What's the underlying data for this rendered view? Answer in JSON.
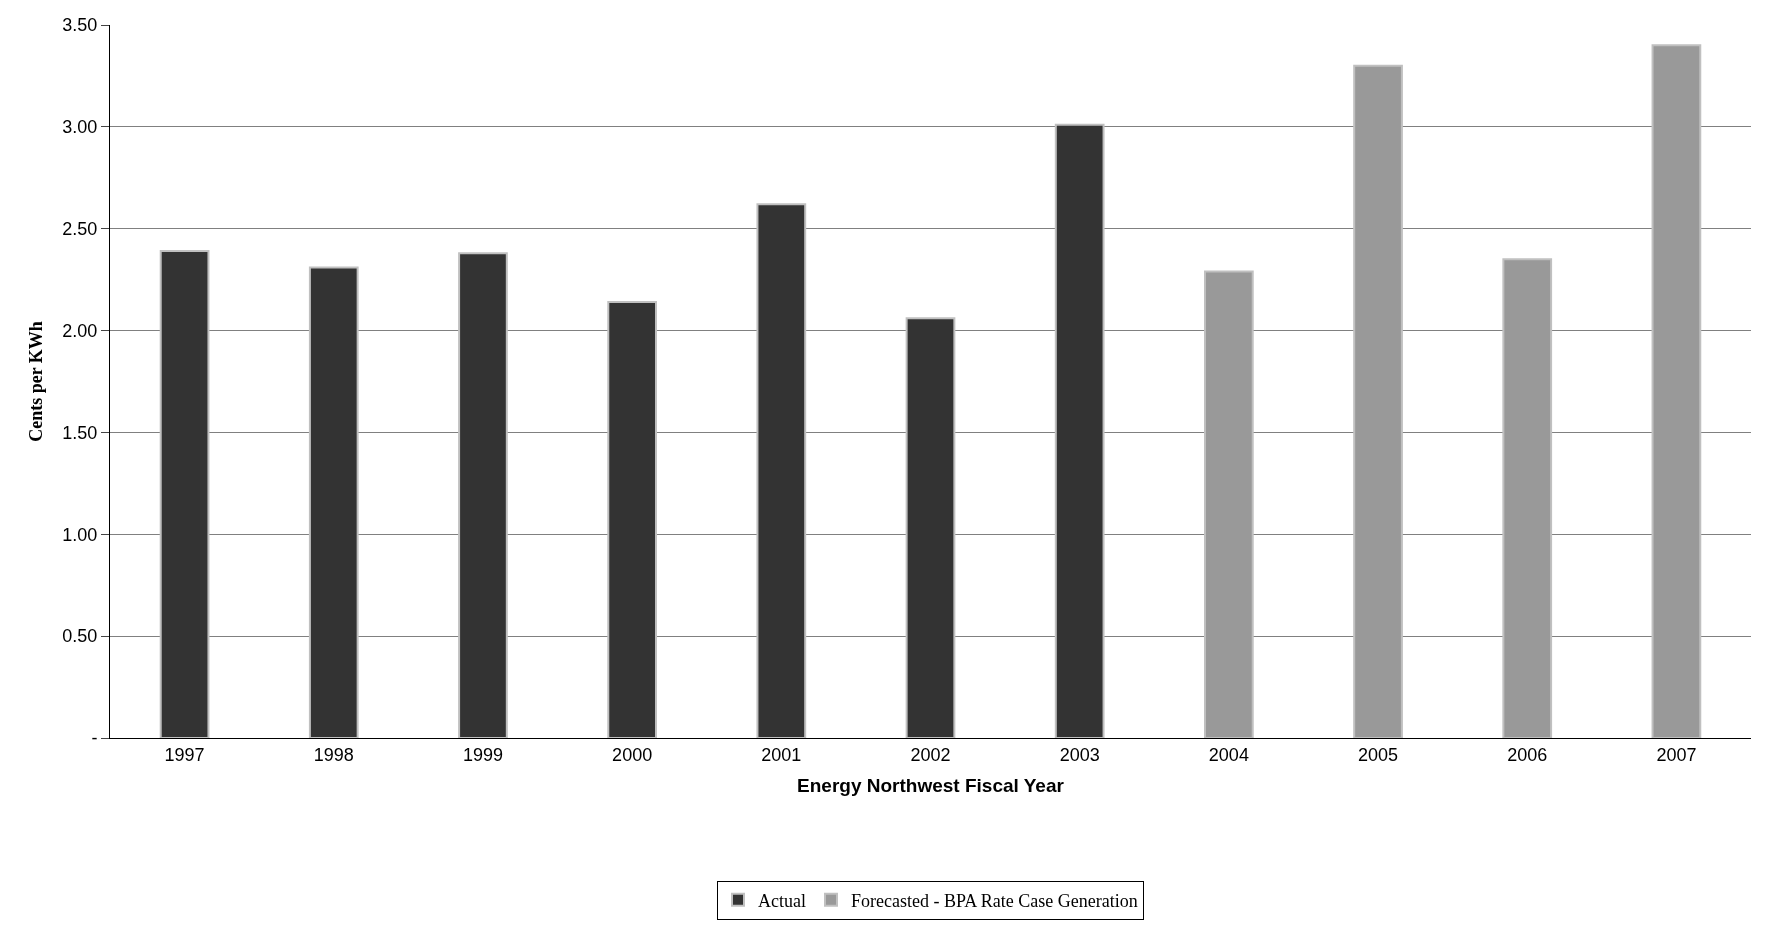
{
  "chart_data": {
    "type": "bar",
    "xlabel": "Energy Northwest Fiscal Year",
    "ylabel": "Cents per KWh",
    "categories": [
      "1997",
      "1998",
      "1999",
      "2000",
      "2001",
      "2002",
      "2003",
      "2004",
      "2005",
      "2006",
      "2007"
    ],
    "series": [
      {
        "name": "Actual",
        "color": "#333333",
        "values": [
          2.39,
          2.31,
          2.38,
          2.14,
          2.62,
          2.06,
          3.01,
          null,
          null,
          null,
          null
        ]
      },
      {
        "name": "Forecasted - BPA Rate Case Generation",
        "color": "#999999",
        "values": [
          null,
          null,
          null,
          null,
          null,
          null,
          null,
          2.29,
          3.3,
          2.35,
          3.4
        ]
      }
    ],
    "ylim": [
      0,
      3.5
    ],
    "yticks": [
      {
        "value": 0,
        "label": "-"
      },
      {
        "value": 0.5,
        "label": "0.50"
      },
      {
        "value": 1,
        "label": "1.00"
      },
      {
        "value": 1.5,
        "label": "1.50"
      },
      {
        "value": 2,
        "label": "2.00"
      },
      {
        "value": 2.5,
        "label": "2.50"
      },
      {
        "value": 3,
        "label": "3.00"
      },
      {
        "value": 3.5,
        "label": "3.50"
      }
    ],
    "grid": "y",
    "legend": "bottom"
  }
}
